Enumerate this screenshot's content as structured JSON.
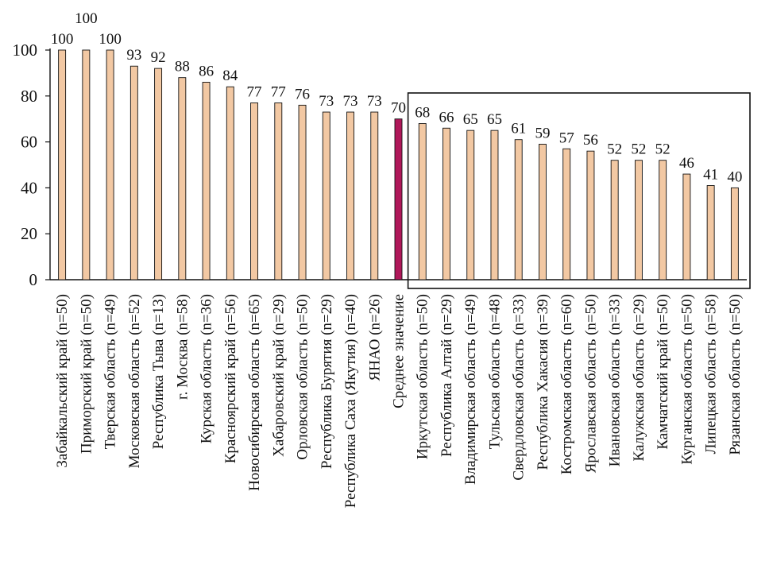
{
  "chart_data": {
    "type": "bar",
    "categories": [
      "Забайкальский край (n=50)",
      "Приморский край (n=50)",
      "Тверская область (n=49)",
      "Московская область (n=52)",
      "Республика  Тыва (n=13)",
      "г. Москва (n=58)",
      "Курская область (n=36)",
      "Красноярский край (n=56)",
      "Новосибирская область (n=65)",
      "Хабаровский край (n=29)",
      "Орловская область (n=50)",
      "Республика Бурятия (n=29)",
      "Республика Саха (Якутия) (n=40)",
      "ЯНАО (n=26)",
      "Среднее значение",
      "Иркутская область (n=50)",
      "Республика Алтай (n=29)",
      "Владимирская область (n=49)",
      "Тульская область (n=48)",
      "Свердловская область (n=33)",
      "Республика Хакасия (n=39)",
      "Костромская область (n=60)",
      "Ярославская область (n=50)",
      "Ивановская область (n=33)",
      "Калужская область (n=29)",
      "Камчатский край (n=50)",
      "Курганская область (n=50)",
      "Липецкая область (n=58)",
      "Рязанская область (n=50)"
    ],
    "values": [
      100,
      100,
      100,
      93,
      92,
      88,
      86,
      84,
      77,
      77,
      76,
      73,
      73,
      73,
      70,
      68,
      66,
      65,
      65,
      61,
      59,
      57,
      56,
      52,
      52,
      52,
      46,
      41,
      40
    ],
    "highlight_category": "Среднее значение",
    "highlight_box_categories": [
      "Иркутская область (n=50)",
      "Рязанская область (n=50)"
    ],
    "ylim": [
      0,
      100
    ],
    "yticks": [
      0,
      20,
      40,
      60,
      80,
      100
    ],
    "grid": false,
    "title": "",
    "xlabel": "",
    "ylabel": "",
    "colors": {
      "bar": "#f2c8a3",
      "highlight": "#b0185a",
      "outline": "#111111"
    }
  }
}
